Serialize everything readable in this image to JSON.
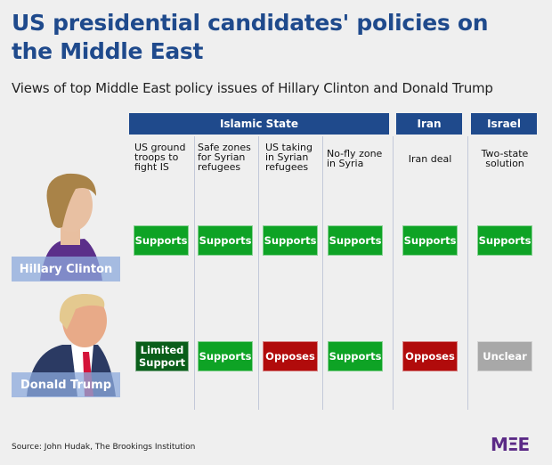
{
  "title": "US presidential candidates' policies on the Middle East",
  "subtitle": "Views of top Middle East policy issues of Hillary Clinton and Donald Trump",
  "groups": [
    "Islamic State",
    "Iran",
    "Israel"
  ],
  "issues": [
    "US ground troops to fight IS",
    "Safe zones for Syrian refugees",
    "US taking in Syrian refugees",
    "No-fly zone in Syria",
    "Iran deal",
    "Two-state solution"
  ],
  "candidates": [
    {
      "name": "Hillary Clinton",
      "positions": [
        "Supports",
        "Supports",
        "Supports",
        "Supports",
        "Supports",
        "Supports"
      ]
    },
    {
      "name": "Donald Trump",
      "positions": [
        "Limited Support",
        "Supports",
        "Opposes",
        "Supports",
        "Opposes",
        "Unclear"
      ]
    }
  ],
  "colors": {
    "Supports": "#0ea325",
    "Limited Support": "#0a5e1a",
    "Opposes": "#b10b0b",
    "Unclear": "#a8a8a8",
    "header": "#1f4a8c"
  },
  "source": "Source: John Hudak, The Brookings Institution",
  "logo": "MEE"
}
